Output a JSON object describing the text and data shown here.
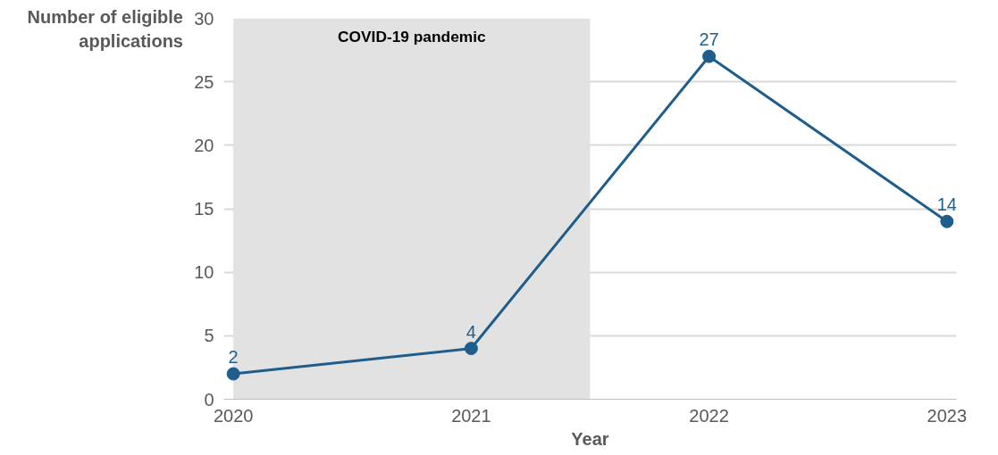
{
  "chart_data": {
    "type": "line",
    "xlabel": "Year",
    "ylabel": "Number of eligible applications",
    "x": [
      2020,
      2021,
      2022,
      2023
    ],
    "series": [
      {
        "color": "#1f5e8c",
        "values": [
          2,
          4,
          27,
          14
        ]
      }
    ],
    "xlim": [
      2019.96,
      2023.04
    ],
    "xticks": [
      2020,
      2021,
      2022,
      2023
    ],
    "ylim": [
      0,
      30
    ],
    "yticks": [
      0,
      5,
      10,
      15,
      20,
      25,
      30
    ],
    "grid": "y",
    "marker": "circle",
    "line_style": "solid",
    "data_labels": true,
    "bands": [
      {
        "axis": "x",
        "from": 2020,
        "to": 2021.5,
        "label": "COVID-19 pandemic",
        "color": "#e2e2e2"
      }
    ]
  }
}
